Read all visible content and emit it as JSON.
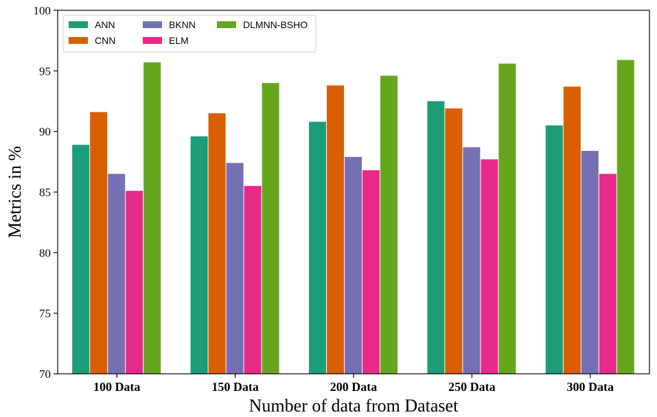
{
  "chart_data": {
    "type": "bar",
    "xlabel": "Number of data from Dataset",
    "ylabel": "Metrics in %",
    "ylim": [
      70,
      100
    ],
    "yticks": [
      70,
      75,
      80,
      85,
      90,
      95,
      100
    ],
    "categories": [
      "100 Data",
      "150 Data",
      "200 Data",
      "250 Data",
      "300 Data"
    ],
    "series": [
      {
        "name": "ANN",
        "color": "#1b9e77",
        "values": [
          88.9,
          89.6,
          90.8,
          92.5,
          90.5
        ]
      },
      {
        "name": "CNN",
        "color": "#d95f02",
        "values": [
          91.6,
          91.5,
          93.8,
          91.9,
          93.7
        ]
      },
      {
        "name": "BKNN",
        "color": "#7570b3",
        "values": [
          86.5,
          87.4,
          87.9,
          88.7,
          88.4
        ]
      },
      {
        "name": "ELM",
        "color": "#e7298a",
        "values": [
          85.1,
          85.5,
          86.8,
          87.7,
          86.5
        ]
      },
      {
        "name": "DLMNN-BSHO",
        "color": "#66a61e",
        "values": [
          95.7,
          94.0,
          94.6,
          95.6,
          95.9
        ]
      }
    ],
    "legend_position": "top-left",
    "grid": false
  }
}
